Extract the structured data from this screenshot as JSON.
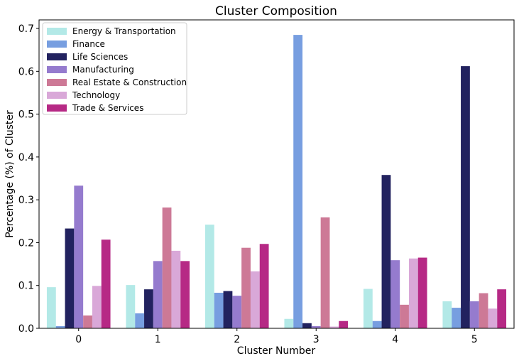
{
  "chart_data": {
    "type": "bar",
    "title": "Cluster Composition",
    "xlabel": "Cluster Number",
    "ylabel": "Percentage (%) of Cluster",
    "categories": [
      "0",
      "1",
      "2",
      "3",
      "4",
      "5"
    ],
    "ylim": [
      0,
      0.72
    ],
    "yticks": [
      "0.0",
      "0.1",
      "0.2",
      "0.3",
      "0.4",
      "0.5",
      "0.6",
      "0.7"
    ],
    "grid": false,
    "legend_position": "top-left",
    "series": [
      {
        "name": "Energy & Transportation",
        "color": "#b3e9e7",
        "values": [
          0.096,
          0.101,
          0.242,
          0.022,
          0.092,
          0.063
        ]
      },
      {
        "name": "Finance",
        "color": "#779ee0",
        "values": [
          0.005,
          0.035,
          0.083,
          0.685,
          0.017,
          0.048
        ]
      },
      {
        "name": "Life Sciences",
        "color": "#22225f",
        "values": [
          0.233,
          0.091,
          0.087,
          0.012,
          0.358,
          0.612
        ]
      },
      {
        "name": "Manufacturing",
        "color": "#957bce",
        "values": [
          0.333,
          0.157,
          0.076,
          0.005,
          0.159,
          0.063
        ]
      },
      {
        "name": "Real Estate & Construction",
        "color": "#cd7996",
        "values": [
          0.03,
          0.282,
          0.188,
          0.259,
          0.055,
          0.082
        ]
      },
      {
        "name": "Technology",
        "color": "#d9a8d8",
        "values": [
          0.099,
          0.181,
          0.133,
          0.004,
          0.163,
          0.046
        ]
      },
      {
        "name": "Trade & Services",
        "color": "#b62985",
        "values": [
          0.207,
          0.157,
          0.197,
          0.017,
          0.165,
          0.091
        ]
      }
    ]
  }
}
